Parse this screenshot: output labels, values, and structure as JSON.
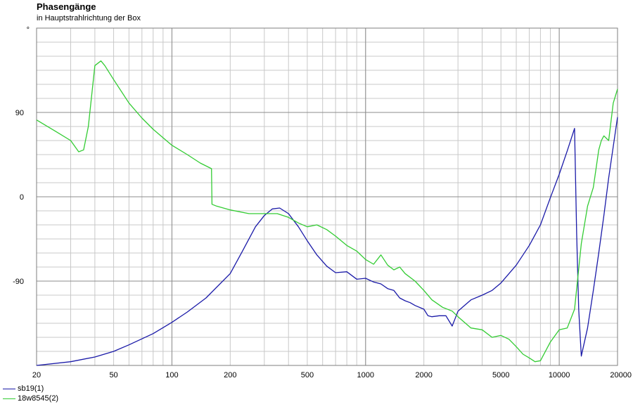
{
  "chart_data": {
    "type": "line",
    "title": "Phasengänge",
    "subtitle": "in Hauptstrahlrichtung der Box",
    "xscale": "log",
    "xlim": [
      20,
      20000
    ],
    "ylim": [
      -180,
      180
    ],
    "grid": true,
    "legend_placement": "bottom-left",
    "y_unit_marker": "°",
    "x_tick_labels": [
      "20",
      "50",
      "100",
      "200",
      "500",
      "1000",
      "2000",
      "5000",
      "10000",
      "20000"
    ],
    "x_tick_values": [
      20,
      50,
      100,
      200,
      500,
      1000,
      2000,
      5000,
      10000,
      20000
    ],
    "y_tick_labels": [
      "90",
      "0",
      "-90"
    ],
    "y_tick_values": [
      90,
      0,
      -90
    ],
    "series": [
      {
        "name": "sb19(1)",
        "color": "#1a1aa8",
        "x": [
          20,
          30,
          40,
          50,
          60,
          80,
          100,
          120,
          150,
          200,
          230,
          270,
          300,
          330,
          360,
          400,
          450,
          500,
          560,
          630,
          700,
          800,
          900,
          1000,
          1100,
          1200,
          1300,
          1400,
          1500,
          1600,
          1700,
          1800,
          2000,
          2100,
          2200,
          2400,
          2600,
          2800,
          2900,
          3000,
          3200,
          3500,
          4000,
          4500,
          5000,
          6000,
          7000,
          8000,
          9000,
          10000,
          11000,
          12000,
          12300,
          12600,
          13000,
          14000,
          15000,
          16000,
          17000,
          18000,
          20000
        ],
        "y": [
          -180,
          -176,
          -171,
          -165,
          -158,
          -146,
          -134,
          -123,
          -108,
          -82,
          -59,
          -32,
          -20,
          -13,
          -12,
          -18,
          -32,
          -47,
          -62,
          -74,
          -81,
          -80,
          -88,
          -87,
          -91,
          -93,
          -98,
          -100,
          -108,
          -111,
          -113,
          -116,
          -120,
          -127,
          -128,
          -127,
          -127,
          -138,
          -130,
          -122,
          -117,
          -110,
          -105,
          -100,
          -92,
          -73,
          -52,
          -30,
          -1,
          24,
          49,
          73,
          -40,
          -120,
          -170,
          -140,
          -100,
          -60,
          -20,
          20,
          85
        ]
      },
      {
        "name": "18w8545(2)",
        "color": "#33cc33",
        "x": [
          20,
          25,
          30,
          33,
          35,
          37,
          40,
          43,
          45,
          50,
          60,
          70,
          80,
          100,
          120,
          140,
          160,
          161,
          170,
          200,
          250,
          300,
          350,
          400,
          450,
          500,
          560,
          630,
          700,
          800,
          900,
          1000,
          1100,
          1200,
          1300,
          1400,
          1500,
          1600,
          1800,
          2000,
          2200,
          2500,
          2800,
          3000,
          3500,
          4000,
          4500,
          5000,
          5500,
          6000,
          6500,
          7000,
          7500,
          8000,
          9000,
          10000,
          11000,
          12000,
          13000,
          14000,
          15000,
          16000,
          16500,
          17000,
          18000,
          19000,
          20000
        ],
        "y": [
          82,
          70,
          60,
          48,
          50,
          75,
          140,
          145,
          140,
          125,
          100,
          84,
          72,
          55,
          45,
          36,
          30,
          -8,
          -10,
          -14,
          -18,
          -18,
          -18,
          -22,
          -28,
          -32,
          -30,
          -35,
          -42,
          -52,
          -58,
          -67,
          -72,
          -62,
          -73,
          -78,
          -75,
          -82,
          -90,
          -100,
          -110,
          -118,
          -122,
          -128,
          -140,
          -142,
          -150,
          -148,
          -152,
          -160,
          -168,
          -172,
          -176,
          -175,
          -155,
          -142,
          -140,
          -120,
          -50,
          -10,
          10,
          50,
          60,
          65,
          60,
          100,
          115
        ]
      }
    ]
  }
}
